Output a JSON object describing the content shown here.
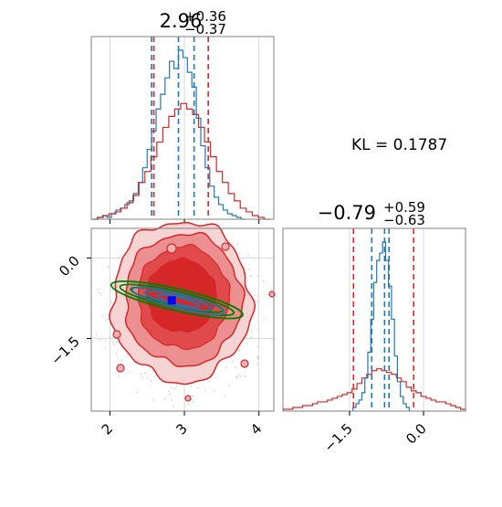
{
  "kl_text": "KL = 0.1787",
  "colors": {
    "blue": "#1f77b4",
    "red": "#d62728",
    "green": "#008000",
    "marker": "#0000ff",
    "grid": "#d0d0d0",
    "frame": "#808080"
  },
  "chart_data": [
    {
      "type": "histogram",
      "panel": "top-left",
      "title": {
        "base": "2.96",
        "sup": "+0.36",
        "sub": "−0.37"
      },
      "xlim": [
        1.75,
        4.2
      ],
      "x_ticks": [
        2,
        3,
        4
      ],
      "grid": true,
      "series": [
        {
          "color": "blue",
          "bins": [
            1.78,
            1.84,
            1.9,
            1.96,
            2.02,
            2.08,
            2.14,
            2.2,
            2.26,
            2.32,
            2.38,
            2.44,
            2.5,
            2.56,
            2.62,
            2.68,
            2.74,
            2.8,
            2.86,
            2.92,
            2.98,
            3.04,
            3.1,
            3.16,
            3.22,
            3.28,
            3.34,
            3.4,
            3.46,
            3.52,
            3.58,
            3.64,
            3.7,
            3.76,
            3.82
          ],
          "values": [
            0,
            0.01,
            0.02,
            0.01,
            0.03,
            0.05,
            0.06,
            0.08,
            0.1,
            0.14,
            0.2,
            0.28,
            0.38,
            0.48,
            0.6,
            0.68,
            0.77,
            0.86,
            0.82,
            0.92,
            0.88,
            0.8,
            0.72,
            0.55,
            0.4,
            0.28,
            0.18,
            0.12,
            0.08,
            0.05,
            0.03,
            0.02,
            0.01,
            0
          ]
        },
        {
          "color": "red",
          "bins": [
            1.75,
            1.83,
            1.91,
            1.99,
            2.07,
            2.15,
            2.23,
            2.31,
            2.39,
            2.47,
            2.55,
            2.63,
            2.71,
            2.79,
            2.87,
            2.95,
            3.03,
            3.11,
            3.19,
            3.27,
            3.35,
            3.43,
            3.51,
            3.59,
            3.67,
            3.75,
            3.83,
            3.91,
            3.99,
            4.07,
            4.15
          ],
          "values": [
            0,
            0.01,
            0.02,
            0.03,
            0.04,
            0.06,
            0.09,
            0.13,
            0.2,
            0.26,
            0.34,
            0.42,
            0.5,
            0.56,
            0.6,
            0.63,
            0.6,
            0.57,
            0.5,
            0.42,
            0.34,
            0.26,
            0.2,
            0.14,
            0.1,
            0.06,
            0.04,
            0.02,
            0.01,
            0
          ]
        }
      ],
      "quantile_lines": {
        "blue": [
          2.56,
          2.92,
          3.13
        ],
        "red": [
          2.59,
          3.32
        ]
      }
    },
    {
      "type": "contour",
      "panel": "bottom-left",
      "xlim": [
        1.75,
        4.2
      ],
      "ylim": [
        -2.85,
        0.55
      ],
      "x_ticks": [
        2,
        3,
        4
      ],
      "x_tick_labels": [
        "2",
        "3",
        "4"
      ],
      "y_ticks": [
        0.0,
        -1.5
      ],
      "y_tick_labels": [
        "0.0",
        "−1.5"
      ],
      "grid": true,
      "red_density_center": [
        2.96,
        -0.79
      ],
      "green_contours_center": [
        2.9,
        -0.78
      ],
      "blue_contours_center": [
        2.92,
        -0.8
      ],
      "marker_point": [
        2.83,
        -0.79
      ]
    },
    {
      "type": "histogram",
      "panel": "bottom-right",
      "title": {
        "base": "−0.79",
        "sup": "+0.59",
        "sub": "−0.63"
      },
      "xlim": [
        -2.85,
        0.85
      ],
      "x_ticks": [
        -1.5,
        0.0
      ],
      "x_tick_labels": [
        "−1.5",
        "0.0"
      ],
      "grid": true,
      "series": [
        {
          "color": "red",
          "bins": [
            -2.85,
            -2.75,
            -2.65,
            -2.55,
            -2.45,
            -2.35,
            -2.25,
            -2.15,
            -2.05,
            -1.95,
            -1.85,
            -1.75,
            -1.65,
            -1.55,
            -1.45,
            -1.35,
            -1.25,
            -1.15,
            -1.05,
            -0.95,
            -0.85,
            -0.75,
            -0.65,
            -0.55,
            -0.45,
            -0.35,
            -0.25,
            -0.15,
            -0.05,
            0.05,
            0.15,
            0.25,
            0.35,
            0.45,
            0.55,
            0.65,
            0.75,
            0.85
          ],
          "values": [
            0.01,
            0.01,
            0.02,
            0.02,
            0.03,
            0.03,
            0.04,
            0.05,
            0.05,
            0.06,
            0.07,
            0.08,
            0.09,
            0.1,
            0.12,
            0.15,
            0.18,
            0.2,
            0.22,
            0.23,
            0.22,
            0.21,
            0.2,
            0.18,
            0.16,
            0.13,
            0.11,
            0.1,
            0.08,
            0.07,
            0.06,
            0.05,
            0.05,
            0.04,
            0.03,
            0.02,
            0.01
          ]
        },
        {
          "color": "blue",
          "bins": [
            -1.43,
            -1.37,
            -1.31,
            -1.25,
            -1.19,
            -1.13,
            -1.07,
            -1.01,
            -0.95,
            -0.89,
            -0.83,
            -0.77,
            -0.71,
            -0.65,
            -0.59,
            -0.53,
            -0.47,
            -0.41,
            -0.35,
            -0.29
          ],
          "values": [
            0.02,
            0.04,
            0.06,
            0.1,
            0.18,
            0.32,
            0.5,
            0.7,
            0.82,
            0.86,
            0.92,
            0.82,
            0.68,
            0.5,
            0.3,
            0.16,
            0.08,
            0.04,
            0.02
          ]
        }
      ],
      "quantile_lines": {
        "blue": [
          -1.05,
          -0.79,
          -0.7
        ],
        "red": [
          -1.42,
          -0.2
        ]
      }
    }
  ]
}
